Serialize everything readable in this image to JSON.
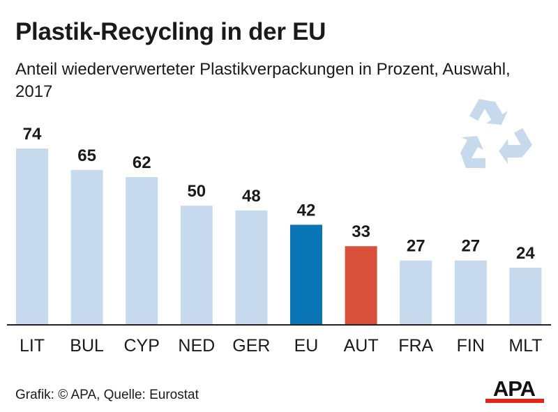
{
  "colors": {
    "bar_default": "#c7d9ec",
    "bar_eu": "#0a75b5",
    "bar_austria": "#d9503a",
    "recycle_symbol": "#c7d9ec",
    "axis": "#222222",
    "logo_text": "#111111",
    "logo_accent": "#e1261c"
  },
  "icons": [
    "recycling-icon",
    "apa-logo"
  ],
  "chart_data": {
    "type": "bar",
    "title": "Plastik-Recycling in der EU",
    "subtitle": "Anteil wiederverwerteter Plastikverpackungen in Prozent, Auswahl, 2017",
    "categories": [
      "LIT",
      "BUL",
      "CYP",
      "NED",
      "GER",
      "EU",
      "AUT",
      "FRA",
      "FIN",
      "MLT"
    ],
    "values": [
      74,
      65,
      62,
      50,
      48,
      42,
      33,
      27,
      27,
      24
    ],
    "bar_colors": [
      "#c7d9ec",
      "#c7d9ec",
      "#c7d9ec",
      "#c7d9ec",
      "#c7d9ec",
      "#0a75b5",
      "#d9503a",
      "#c7d9ec",
      "#c7d9ec",
      "#c7d9ec"
    ],
    "data_labels": [
      "74",
      "65",
      "62",
      "50",
      "48",
      "42",
      "33",
      "27",
      "27",
      "24"
    ],
    "ylim": [
      0,
      74
    ],
    "grid": false,
    "legend": "none",
    "xlabel": "",
    "ylabel": ""
  },
  "footer": {
    "source": "Grafik: © APA, Quelle: Eurostat",
    "logo_text": "APA"
  }
}
